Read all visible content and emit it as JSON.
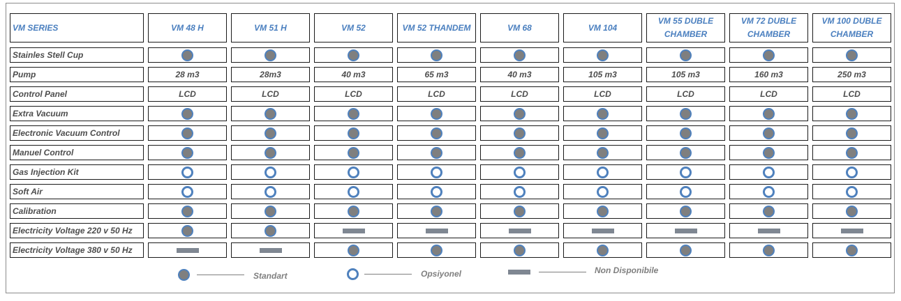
{
  "table": {
    "header": [
      "VM SERIES",
      "VM 48 H",
      "VM 51 H",
      "VM 52",
      "VM 52 THANDEM",
      "VM 68",
      "VM 104",
      "VM 55 DUBLE CHAMBER",
      "VM 72 DUBLE CHAMBER",
      "VM 100 DUBLE CHAMBER"
    ],
    "rows": [
      {
        "label": "Stainles Stell Cup",
        "cells": [
          "standard",
          "standard",
          "standard",
          "standard",
          "standard",
          "standard",
          "standard",
          "standard",
          "standard"
        ]
      },
      {
        "label": "Pump",
        "cells": [
          "28 m3",
          "28m3",
          "40 m3",
          "65 m3",
          "40 m3",
          "105 m3",
          "105 m3",
          "160 m3",
          "250 m3"
        ]
      },
      {
        "label": "Control Panel",
        "cells": [
          "LCD",
          "LCD",
          "LCD",
          "LCD",
          "LCD",
          "LCD",
          "LCD",
          "LCD",
          "LCD"
        ]
      },
      {
        "label": "Extra Vacuum",
        "cells": [
          "standard",
          "standard",
          "standard",
          "standard",
          "standard",
          "standard",
          "standard",
          "standard",
          "standard"
        ]
      },
      {
        "label": "Electronic Vacuum Control",
        "cells": [
          "standard",
          "standard",
          "standard",
          "standard",
          "standard",
          "standard",
          "standard",
          "standard",
          "standard"
        ]
      },
      {
        "label": "Manuel Control",
        "cells": [
          "standard",
          "standard",
          "standard",
          "standard",
          "standard",
          "standard",
          "standard",
          "standard",
          "standard"
        ]
      },
      {
        "label": "Gas Injection Kit",
        "cells": [
          "optional",
          "optional",
          "optional",
          "optional",
          "optional",
          "optional",
          "optional",
          "optional",
          "optional"
        ]
      },
      {
        "label": "Soft Air",
        "cells": [
          "optional",
          "optional",
          "optional",
          "optional",
          "optional",
          "optional",
          "optional",
          "optional",
          "optional"
        ]
      },
      {
        "label": "Calibration",
        "cells": [
          "standard",
          "standard",
          "standard",
          "standard",
          "standard",
          "standard",
          "standard",
          "standard",
          "standard"
        ]
      },
      {
        "label": "Electricity Voltage 220 v 50 Hz",
        "cells": [
          "standard",
          "standard",
          "unavailable",
          "unavailable",
          "unavailable",
          "unavailable",
          "unavailable",
          "unavailable",
          "unavailable"
        ]
      },
      {
        "label": "Electricity Voltage 380 v 50 Hz",
        "cells": [
          "unavailable",
          "unavailable",
          "standard",
          "standard",
          "standard",
          "standard",
          "standard",
          "standard",
          "standard"
        ]
      }
    ]
  },
  "legend": {
    "standard": "Standart",
    "optional": "Opsiyonel",
    "unavailable": "Non Disponibile"
  },
  "symbols": {
    "standard": "filled-circle-icon",
    "optional": "ring-icon",
    "unavailable": "dash-bar-icon"
  },
  "colors": {
    "header_text": "#4a7fbf",
    "body_text": "#4d4d4d",
    "symbol_blue": "#4f81bd",
    "symbol_gray": "#7f7f7f"
  }
}
